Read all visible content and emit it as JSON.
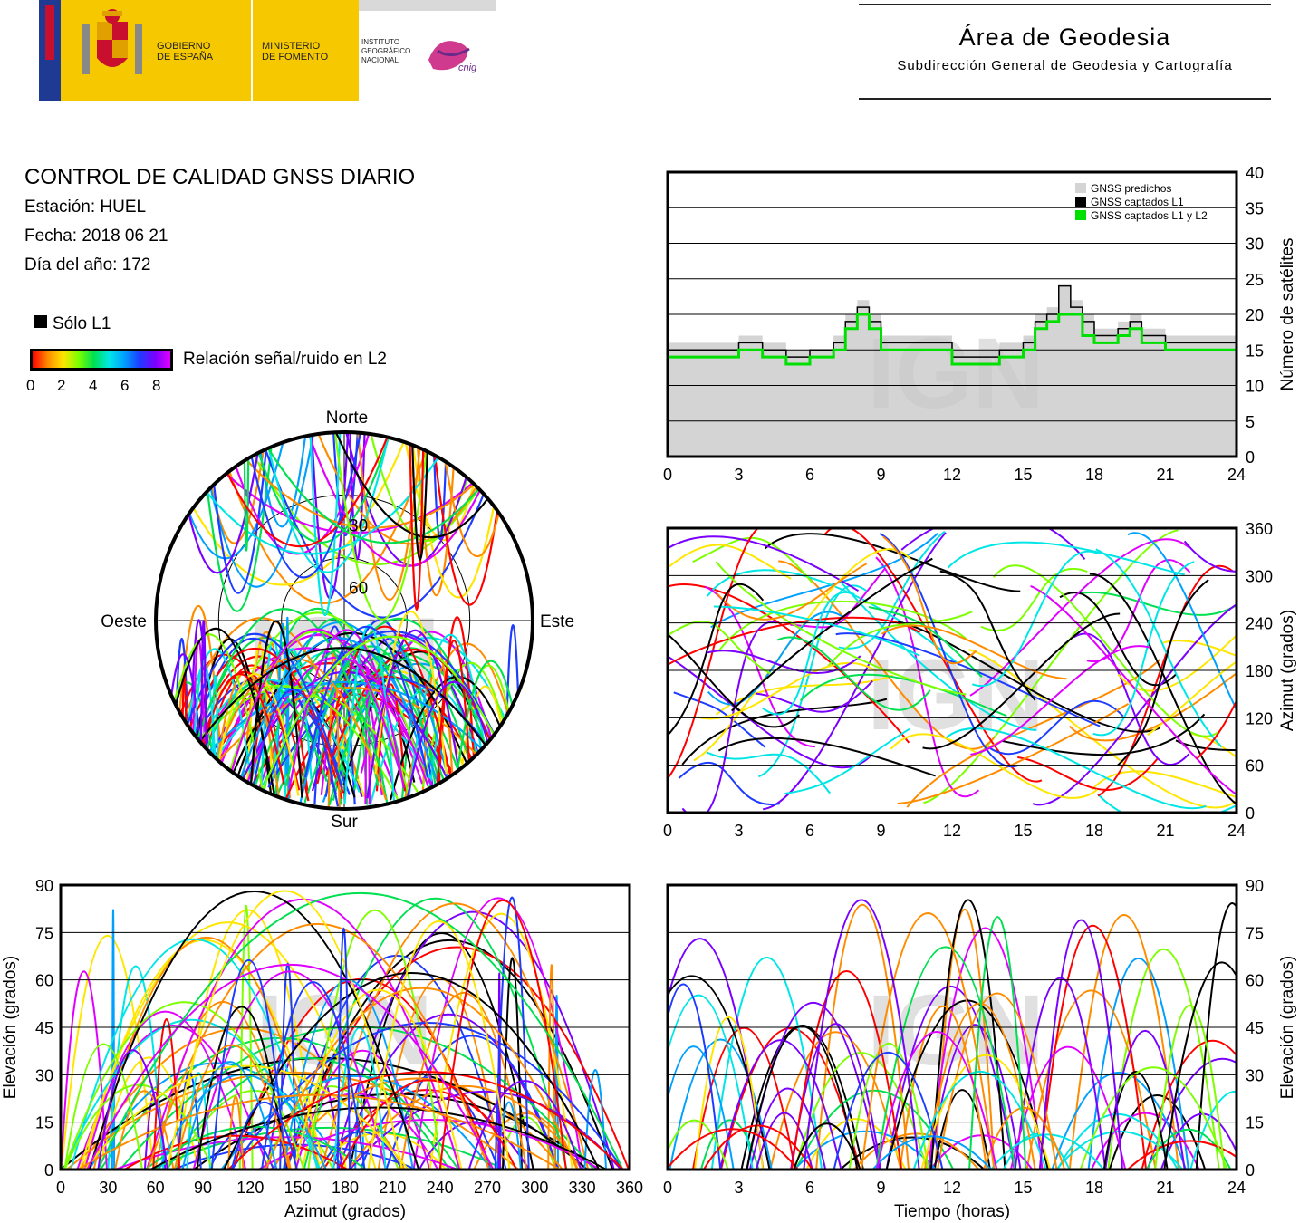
{
  "header": {
    "gov_label_1": "GOBIERNO",
    "gov_label_2": "DE ESPAÑA",
    "min_label_1": "MINISTERIO",
    "min_label_2": "DE FOMENTO",
    "ign_label_1": "INSTITUTO",
    "ign_label_2": "GEOGRÁFICO",
    "ign_label_3": "NACIONAL",
    "cnig_label": "cnig",
    "area_title": "Área de Geodesia",
    "area_subtitle": "Subdirección General de Geodesia y Cartografía"
  },
  "report": {
    "title": "CONTROL DE CALIDAD GNSS DIARIO",
    "station": "Estación: HUEL",
    "date": "Fecha: 2018 06 21",
    "doy": "Día del año: 172"
  },
  "legend": {
    "l1_only": "Sólo L1",
    "snr_label": "Relación señal/ruido en L2",
    "ticks": [
      "0",
      "2",
      "4",
      "6",
      "8"
    ],
    "colorscale": [
      "#ff0000",
      "#ff8c00",
      "#ffe600",
      "#7dff00",
      "#00e050",
      "#00e6e6",
      "#00a0ff",
      "#1e3cff",
      "#7a00ff",
      "#e000ff"
    ]
  },
  "watermark": "IGN",
  "chart_data": [
    {
      "id": "satellites",
      "type": "area",
      "ylabel": "Número de satélites",
      "xlim": [
        0,
        24
      ],
      "ylim": [
        0,
        40
      ],
      "xticks": [
        "0",
        "3",
        "6",
        "9",
        "12",
        "15",
        "18",
        "21",
        "24"
      ],
      "yticks": [
        "0",
        "5",
        "10",
        "15",
        "20",
        "25",
        "30",
        "35",
        "40"
      ],
      "legend": [
        "GNSS predichos",
        "GNSS captados L1",
        "GNSS captados L1 y L2"
      ],
      "legend_position": "top-right",
      "colors": {
        "predicted": "#d4d4d4",
        "l1": "#000000",
        "l1l2": "#00e000"
      },
      "x": [
        0,
        1,
        2,
        3,
        4,
        5,
        6,
        7,
        7.5,
        8,
        8.5,
        9,
        10,
        11,
        12,
        13,
        14,
        15,
        15.5,
        16,
        16.5,
        17,
        17.5,
        18,
        19,
        19.5,
        20,
        21,
        22,
        23,
        24
      ],
      "series": [
        {
          "name": "GNSS predichos",
          "values": [
            16,
            16,
            16,
            17,
            16,
            15,
            15,
            17,
            20,
            22,
            20,
            17,
            17,
            17,
            15,
            15,
            16,
            17,
            20,
            21,
            24,
            22,
            20,
            18,
            19,
            20,
            18,
            17,
            17,
            17,
            18
          ]
        },
        {
          "name": "GNSS captados L1",
          "values": [
            15,
            15,
            15,
            16,
            15,
            14,
            15,
            16,
            19,
            21,
            19,
            16,
            16,
            16,
            14,
            14,
            15,
            16,
            19,
            20,
            24,
            21,
            19,
            17,
            18,
            19,
            17,
            16,
            16,
            16,
            17
          ]
        },
        {
          "name": "GNSS captados L1 y L2",
          "values": [
            14,
            14,
            14,
            15,
            14,
            13,
            14,
            15,
            18,
            20,
            18,
            15,
            15,
            15,
            13,
            13,
            14,
            15,
            18,
            19,
            20,
            20,
            17,
            16,
            17,
            18,
            16,
            15,
            15,
            15,
            16
          ]
        }
      ]
    },
    {
      "id": "polar",
      "type": "scatter",
      "directions": {
        "north": "Norte",
        "south": "Sur",
        "west": "Oeste",
        "east": "Este"
      },
      "rings": [
        "30",
        "60"
      ]
    },
    {
      "id": "azimuth_time",
      "type": "line",
      "ylabel": "Azimut (grados)",
      "xlim": [
        0,
        24
      ],
      "ylim": [
        0,
        360
      ],
      "xticks": [
        "0",
        "3",
        "6",
        "9",
        "12",
        "15",
        "18",
        "21",
        "24"
      ],
      "yticks": [
        "0",
        "60",
        "120",
        "180",
        "240",
        "300",
        "360"
      ]
    },
    {
      "id": "elevation_azimuth",
      "type": "line",
      "xlabel": "Azimut (grados)",
      "ylabel": "Elevación (grados)",
      "xlim": [
        0,
        360
      ],
      "ylim": [
        0,
        90
      ],
      "xticks": [
        "0",
        "30",
        "60",
        "90",
        "120",
        "150",
        "180",
        "210",
        "240",
        "270",
        "300",
        "330",
        "360"
      ],
      "yticks": [
        "0",
        "15",
        "30",
        "45",
        "60",
        "75",
        "90"
      ]
    },
    {
      "id": "elevation_time",
      "type": "line",
      "xlabel": "Tiempo (horas)",
      "ylabel": "Elevación (grados)",
      "xlim": [
        0,
        24
      ],
      "ylim": [
        0,
        90
      ],
      "xticks": [
        "0",
        "3",
        "6",
        "9",
        "12",
        "15",
        "18",
        "21",
        "24"
      ],
      "yticks": [
        "0",
        "15",
        "30",
        "45",
        "60",
        "75",
        "90"
      ]
    }
  ]
}
